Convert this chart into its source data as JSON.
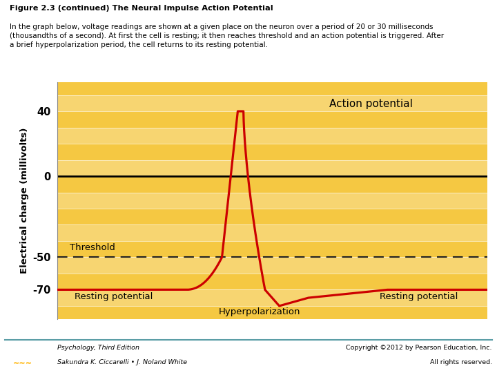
{
  "title_bold": "Figure 2.3 (continued) The Neural Impulse Action Potential",
  "title_normal": "In the graph below, voltage readings are shown at a given place on the neuron over a period of 20 or 30 milliseconds\n(thousandths of a second). At first the cell is resting; it then reaches threshold and an action potential is triggered. After\na brief hyperpolarization period, the cell returns to its resting potential.",
  "bg_color": "#F5C842",
  "line_color": "#CC0000",
  "zero_line_color": "#000000",
  "ylabel": "Electrical charge (millivolts)",
  "yticks": [
    -70,
    -50,
    0,
    40
  ],
  "ylim": [
    -88,
    58
  ],
  "xlim": [
    0,
    30
  ],
  "resting_potential": -70,
  "threshold": -50,
  "footer_left_line1": "Psychology, Third Edition",
  "footer_left_line2": "Sakundra K. Ciccarelli • J. Noland White",
  "footer_right_line1": "Copyright ©2012 by Pearson Education, Inc.",
  "footer_right_line2": "All rights reserved.",
  "label_action_potential": "Action potential",
  "label_threshold": "Threshold",
  "label_resting_left": "Resting potential",
  "label_resting_right": "Resting potential",
  "label_hyperpolarization": "Hyperpolarization",
  "pearson_blue": "#1F3864",
  "pearson_gold": "#FFB300",
  "stripe_alpha": 0.25,
  "teal_line_color": "#5B9EA6"
}
